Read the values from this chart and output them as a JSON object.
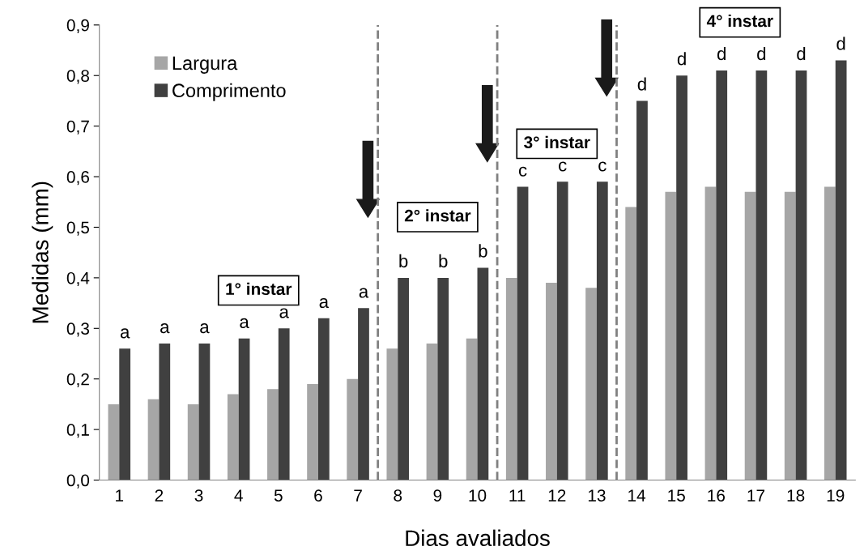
{
  "chart_data": {
    "type": "bar",
    "xlabel": "Dias avaliados",
    "ylabel": "Medidas (mm)",
    "x": [
      1,
      2,
      3,
      4,
      5,
      6,
      7,
      8,
      9,
      10,
      11,
      12,
      13,
      14,
      15,
      16,
      17,
      18,
      19
    ],
    "series": [
      {
        "name": "Largura",
        "color": "#a6a6a6",
        "values": [
          0.15,
          0.16,
          0.15,
          0.17,
          0.18,
          0.19,
          0.2,
          0.26,
          0.27,
          0.28,
          0.4,
          0.39,
          0.38,
          0.54,
          0.57,
          0.58,
          0.57,
          0.57,
          0.58
        ]
      },
      {
        "name": "Comprimento",
        "color": "#404040",
        "values": [
          0.26,
          0.27,
          0.27,
          0.28,
          0.3,
          0.32,
          0.34,
          0.4,
          0.4,
          0.42,
          0.58,
          0.59,
          0.59,
          0.75,
          0.8,
          0.81,
          0.81,
          0.81,
          0.83
        ]
      }
    ],
    "xlim": [
      0.5,
      19.5
    ],
    "xticks": [
      1,
      2,
      3,
      4,
      5,
      6,
      7,
      8,
      9,
      10,
      11,
      12,
      13,
      14,
      15,
      16,
      17,
      18,
      19
    ],
    "ylim": [
      0,
      0.9
    ],
    "yticks": [
      {
        "value": 0,
        "label": "0,0"
      },
      {
        "value": 0.1,
        "label": "0,1"
      },
      {
        "value": 0.2,
        "label": "0,2"
      },
      {
        "value": 0.3,
        "label": "0,3"
      },
      {
        "value": 0.4,
        "label": "0,4"
      },
      {
        "value": 0.5,
        "label": "0,5"
      },
      {
        "value": 0.6,
        "label": "0,6"
      },
      {
        "value": 0.7,
        "label": "0,7"
      },
      {
        "value": 0.8,
        "label": "0,8"
      },
      {
        "value": 0.9,
        "label": "0,9"
      }
    ],
    "ref_lines": [
      {
        "axis": "x",
        "value": 7.5,
        "color": "#808080",
        "line_style": "dashed"
      },
      {
        "axis": "x",
        "value": 10.5,
        "color": "#808080",
        "line_style": "dashed"
      },
      {
        "axis": "x",
        "value": 13.5,
        "color": "#808080",
        "line_style": "dashed"
      }
    ],
    "annotations": [
      {
        "text": "a",
        "x": 1,
        "y": 0.26
      },
      {
        "text": "a",
        "x": 2,
        "y": 0.27
      },
      {
        "text": "a",
        "x": 3,
        "y": 0.27
      },
      {
        "text": "a",
        "x": 4,
        "y": 0.28
      },
      {
        "text": "a",
        "x": 5,
        "y": 0.3
      },
      {
        "text": "a",
        "x": 6,
        "y": 0.32
      },
      {
        "text": "a",
        "x": 7,
        "y": 0.34
      },
      {
        "text": "b",
        "x": 8,
        "y": 0.4
      },
      {
        "text": "b",
        "x": 9,
        "y": 0.4
      },
      {
        "text": "b",
        "x": 10,
        "y": 0.42
      },
      {
        "text": "c",
        "x": 11,
        "y": 0.58
      },
      {
        "text": "c",
        "x": 12,
        "y": 0.59
      },
      {
        "text": "c",
        "x": 13,
        "y": 0.59
      },
      {
        "text": "d",
        "x": 14,
        "y": 0.75
      },
      {
        "text": "d",
        "x": 15,
        "y": 0.8
      },
      {
        "text": "d",
        "x": 16,
        "y": 0.81
      },
      {
        "text": "d",
        "x": 17,
        "y": 0.81
      },
      {
        "text": "d",
        "x": 18,
        "y": 0.81
      },
      {
        "text": "d",
        "x": 19,
        "y": 0.83
      },
      "1° instar",
      "2° instar",
      "3° instar",
      "4° instar"
    ],
    "legend": "top left",
    "grid": false
  }
}
